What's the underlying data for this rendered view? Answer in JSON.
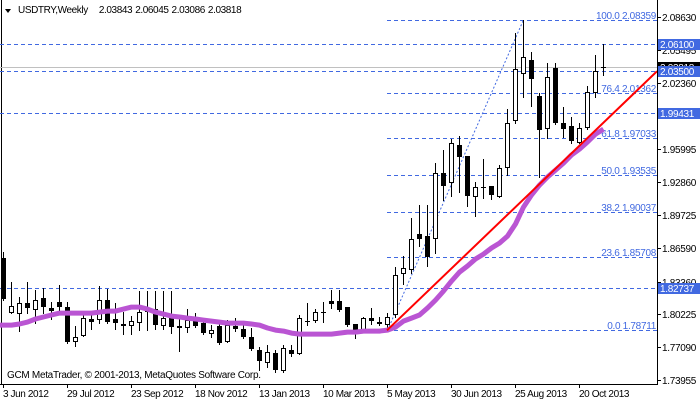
{
  "header": {
    "collapse_icon": "triangle-down-icon",
    "symbol_timeframe": "USDTRY,Weekly",
    "open": "2.03843",
    "high": "2.06045",
    "low": "2.03086",
    "close": "2.03818"
  },
  "footer": {
    "copyright": "GCM MetaTrader, © 2001-2013, MetaQuotes Software Corp."
  },
  "chart_data": {
    "type": "candlestick",
    "title": "USDTRY,Weekly",
    "symbol": "USDTRY",
    "timeframe": "Weekly",
    "xlabel": "",
    "ylabel": "",
    "grid": false,
    "ylim": [
      1.73585,
      2.10254
    ],
    "candle_fields": [
      "open",
      "high",
      "low",
      "close"
    ],
    "candles": [
      [
        1.8561,
        1.8618,
        1.816,
        1.817
      ],
      [
        1.8045,
        1.8332,
        1.8036,
        1.8103
      ],
      [
        1.8036,
        1.8189,
        1.7864,
        1.8131
      ],
      [
        1.8131,
        1.8332,
        1.8036,
        1.8084
      ],
      [
        1.8074,
        1.8255,
        1.794,
        1.816
      ],
      [
        1.8179,
        1.8275,
        1.8036,
        1.8093
      ],
      [
        1.8084,
        1.8141,
        1.7979,
        1.8055
      ],
      [
        1.8141,
        1.8303,
        1.8045,
        1.8093
      ],
      [
        1.8093,
        1.8141,
        1.7749,
        1.7759
      ],
      [
        1.7768,
        1.7912,
        1.7721,
        1.7807
      ],
      [
        1.7826,
        1.8045,
        1.7816,
        1.7988
      ],
      [
        1.7979,
        1.8036,
        1.7883,
        1.795
      ],
      [
        1.7979,
        1.8294,
        1.794,
        1.816
      ],
      [
        1.816,
        1.8265,
        1.794,
        1.795
      ],
      [
        1.7979,
        1.8131,
        1.7883,
        1.794
      ],
      [
        1.7931,
        1.8045,
        1.7835,
        1.7912
      ],
      [
        1.7921,
        1.8007,
        1.7835,
        1.7959
      ],
      [
        1.795,
        1.8246,
        1.7873,
        1.8045
      ],
      [
        1.8055,
        1.8246,
        1.7873,
        1.8045
      ],
      [
        1.8074,
        1.8246,
        1.7883,
        1.7921
      ],
      [
        1.7921,
        1.8246,
        1.7883,
        1.7988
      ],
      [
        1.7988,
        1.8246,
        1.7845,
        1.7902
      ],
      [
        1.7912,
        1.7998,
        1.7673,
        1.7893
      ],
      [
        1.7902,
        1.8074,
        1.7854,
        1.7969
      ],
      [
        1.7969,
        1.8036,
        1.7902,
        1.7912
      ],
      [
        1.794,
        1.7979,
        1.7835,
        1.7845
      ],
      [
        1.7845,
        1.7921,
        1.7807,
        1.7873
      ],
      [
        1.7912,
        1.794,
        1.774,
        1.7749
      ],
      [
        1.7768,
        1.7969,
        1.7759,
        1.7921
      ],
      [
        1.7912,
        1.7988,
        1.7864,
        1.7883
      ],
      [
        1.7883,
        1.7921,
        1.7797,
        1.7807
      ],
      [
        1.7807,
        1.7893,
        1.7682,
        1.7692
      ],
      [
        1.7682,
        1.7711,
        1.7491,
        1.7577
      ],
      [
        1.7568,
        1.773,
        1.752,
        1.7663
      ],
      [
        1.7654,
        1.7682,
        1.7472,
        1.7491
      ],
      [
        1.7491,
        1.773,
        1.7472,
        1.7702
      ],
      [
        1.7682,
        1.773,
        1.7625,
        1.7644
      ],
      [
        1.7654,
        1.8017,
        1.7644,
        1.7988
      ],
      [
        1.7959,
        1.8131,
        1.7921,
        1.795
      ],
      [
        1.7969,
        1.8074,
        1.795,
        1.8045
      ],
      [
        1.8045,
        1.8141,
        1.795,
        1.8036
      ],
      [
        1.815,
        1.8255,
        1.8084,
        1.8122
      ],
      [
        1.815,
        1.8255,
        1.8055,
        1.8064
      ],
      [
        1.8093,
        1.8093,
        1.7912,
        1.7921
      ],
      [
        1.7931,
        1.7931,
        1.7797,
        1.7873
      ],
      [
        1.7873,
        1.7998,
        1.7864,
        1.7988
      ],
      [
        1.7988,
        1.8084,
        1.7931,
        1.7959
      ],
      [
        1.795,
        1.7998,
        1.7921,
        1.7931
      ],
      [
        1.7931,
        1.8036,
        1.7871,
        1.7998
      ],
      [
        1.8026,
        1.8475,
        1.7998,
        1.8399
      ],
      [
        1.8418,
        1.858,
        1.8313,
        1.8466
      ],
      [
        1.8456,
        1.8943,
        1.8418,
        1.8743
      ],
      [
        1.879,
        1.9067,
        1.8676,
        1.8743
      ],
      [
        1.8771,
        1.9067,
        1.8485,
        1.8571
      ],
      [
        1.8752,
        1.9468,
        1.8609,
        1.9373
      ],
      [
        1.9373,
        1.9592,
        1.9115,
        1.9249
      ],
      [
        1.9287,
        1.9698,
        1.9153,
        1.9659
      ],
      [
        1.964,
        1.9726,
        1.9191,
        1.9526
      ],
      [
        1.9535,
        1.9535,
        1.9058,
        1.9153
      ],
      [
        1.9153,
        1.9287,
        1.8962,
        1.9239
      ],
      [
        1.9244,
        1.9507,
        1.9134,
        1.9234
      ],
      [
        1.9249,
        1.9249,
        1.9125,
        1.9163
      ],
      [
        1.9153,
        1.9449,
        1.9144,
        1.9421
      ],
      [
        1.943,
        1.9984,
        1.9354,
        1.985
      ],
      [
        1.9879,
        2.071,
        1.985,
        2.0366
      ],
      [
        2.0328,
        2.0836,
        2.0099,
        2.0481
      ],
      [
        2.0452,
        2.0529,
        2.0013,
        2.0271
      ],
      [
        2.0108,
        2.0137,
        1.9335,
        1.9783
      ],
      [
        1.9803,
        2.0424,
        1.9707,
        2.029
      ],
      [
        2.0376,
        2.0424,
        1.9841,
        1.985
      ],
      [
        1.985,
        2.0003,
        1.9717,
        1.9793
      ],
      [
        1.9822,
        1.9908,
        1.9659,
        1.9678
      ],
      [
        1.9669,
        1.985,
        1.9659,
        1.9803
      ],
      [
        1.9812,
        2.0204,
        1.9793,
        2.0146
      ],
      [
        2.0146,
        2.05,
        2.0099,
        2.0347
      ],
      [
        2.03843,
        2.06045,
        2.03086,
        2.03818
      ]
    ],
    "moving_average": {
      "color": "#BA55D3",
      "values": [
        1.7921,
        1.7921,
        1.7931,
        1.795,
        1.7979,
        1.7998,
        1.8017,
        1.8036,
        1.8036,
        1.8036,
        1.8036,
        1.8036,
        1.8045,
        1.8055,
        1.8055,
        1.8074,
        1.8093,
        1.8093,
        1.8074,
        1.8045,
        1.8026,
        1.8007,
        1.7998,
        1.7988,
        1.7979,
        1.7969,
        1.7959,
        1.795,
        1.794,
        1.794,
        1.794,
        1.7931,
        1.7921,
        1.7893,
        1.7873,
        1.7864,
        1.7845,
        1.7835,
        1.7835,
        1.7835,
        1.7835,
        1.7835,
        1.7845,
        1.7854,
        1.7854,
        1.7864,
        1.7864,
        1.7864,
        1.7873,
        1.7902,
        1.7959,
        1.7988,
        1.8017,
        1.8084,
        1.816,
        1.8246,
        1.8341,
        1.8427,
        1.8485,
        1.8552,
        1.8599,
        1.8657,
        1.8704,
        1.8771,
        1.8886,
        1.9048,
        1.9163,
        1.9258,
        1.9335,
        1.9401,
        1.9468,
        1.9545,
        1.9602,
        1.9669,
        1.9745,
        1.9793
      ]
    },
    "trendline": {
      "color": "#FF0000",
      "start": [
        48,
        1.78711
      ],
      "end": [
        75,
        1.985
      ],
      "ray": true
    },
    "fibonacci": {
      "color": "#4169E1",
      "start": {
        "index": 48,
        "price": 1.78711
      },
      "end": {
        "index": 65,
        "price": 2.08359
      },
      "levels": [
        {
          "level": "100.0",
          "price": "2.08359"
        },
        {
          "level": "76.4",
          "price": "2.01362"
        },
        {
          "level": "61.8",
          "price": "1.97033"
        },
        {
          "level": "50.0",
          "price": "1.93535"
        },
        {
          "level": "38.2",
          "price": "1.90037"
        },
        {
          "level": "23.6",
          "price": "1.85708"
        },
        {
          "level": "0.0",
          "price": "1.78711"
        }
      ]
    },
    "horizontal_lines": [
      {
        "price": 2.061,
        "color": "#4169E1"
      },
      {
        "price": 2.035,
        "color": "#4169E1"
      },
      {
        "price": 1.99431,
        "color": "#4169E1"
      },
      {
        "price": 1.82737,
        "color": "#4169E1"
      }
    ],
    "bid_line": {
      "price": 2.03818,
      "color": "#C0C0C0"
    },
    "y_ticks": [
      "2.08630",
      "2.05495",
      "2.02360",
      "1.95995",
      "1.92860",
      "1.89725",
      "1.86590",
      "1.83360",
      "1.80225",
      "1.77090",
      "1.73955"
    ],
    "price_labels": [
      {
        "price": 2.03818,
        "text": "2.03818",
        "bg": "#000000",
        "fg": "#ffffff"
      },
      {
        "price": 2.061,
        "text": "2.06100",
        "bg": "#4169E1",
        "fg": "#ffffff"
      },
      {
        "price": 2.035,
        "text": "2.03500",
        "bg": "#4169E1",
        "fg": "#ffffff"
      },
      {
        "price": 1.99431,
        "text": "1.99431",
        "bg": "#4169E1",
        "fg": "#ffffff"
      },
      {
        "price": 1.82737,
        "text": "1.82737",
        "bg": "#4169E1",
        "fg": "#ffffff"
      }
    ],
    "x_ticks": [
      {
        "index": 0,
        "label": "3 Jun 2012"
      },
      {
        "index": 8,
        "label": "29 Jul 2012"
      },
      {
        "index": 16,
        "label": "23 Sep 2012"
      },
      {
        "index": 24,
        "label": "18 Nov 2012"
      },
      {
        "index": 32,
        "label": "13 Jan 2013"
      },
      {
        "index": 40,
        "label": "10 Mar 2013"
      },
      {
        "index": 48,
        "label": "5 May 2013"
      },
      {
        "index": 56,
        "label": "30 Jun 2013"
      },
      {
        "index": 64,
        "label": "25 Aug 2013"
      },
      {
        "index": 72,
        "label": "20 Oct 2013"
      }
    ]
  }
}
